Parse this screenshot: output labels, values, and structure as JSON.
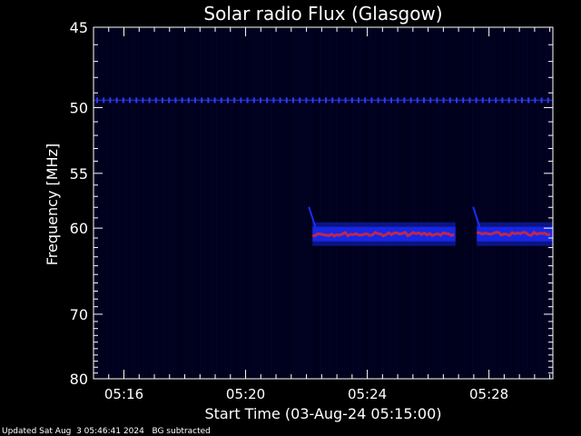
{
  "chart_data": {
    "type": "heatmap",
    "title": "Solar radio Flux (Glasgow)",
    "xlabel": "Start Time (03-Aug-24 05:15:00)",
    "ylabel": "Frequency [MHz]",
    "x_unit": "minutes after 05:15:00",
    "xlim": [
      0,
      15.1
    ],
    "ylim": [
      80,
      45
    ],
    "y_scale": "reciprocal",
    "x_ticks": [
      {
        "value": 1,
        "label": "05:16"
      },
      {
        "value": 5,
        "label": "05:20"
      },
      {
        "value": 9,
        "label": "05:24"
      },
      {
        "value": 13,
        "label": "05:28"
      }
    ],
    "y_ticks": [
      {
        "value": 45,
        "label": "45"
      },
      {
        "value": 50,
        "label": "50"
      },
      {
        "value": 55,
        "label": "55"
      },
      {
        "value": 60,
        "label": "60"
      },
      {
        "value": 70,
        "label": "70"
      },
      {
        "value": 80,
        "label": "80"
      }
    ],
    "features": [
      {
        "name": "interference line",
        "freq_mhz": 49.5,
        "x_start": 0,
        "x_end": 15.1
      },
      {
        "name": "emission band",
        "freq_mhz": 60.6,
        "x_start": 7.2,
        "x_end": 11.9
      },
      {
        "name": "emission band",
        "freq_mhz": 60.6,
        "x_start": 12.6,
        "x_end": 15.1
      }
    ]
  },
  "footer": {
    "updated": "Updated Sat Aug  3 05:46:41 2024",
    "note": "BG subtracted"
  },
  "colors": {
    "background": "#000000",
    "plot_background": "#00001a",
    "axis": "#ffffff",
    "interference": "#2a3cff",
    "band_outer": "#1a2cff",
    "band_core": "#d0283c"
  }
}
